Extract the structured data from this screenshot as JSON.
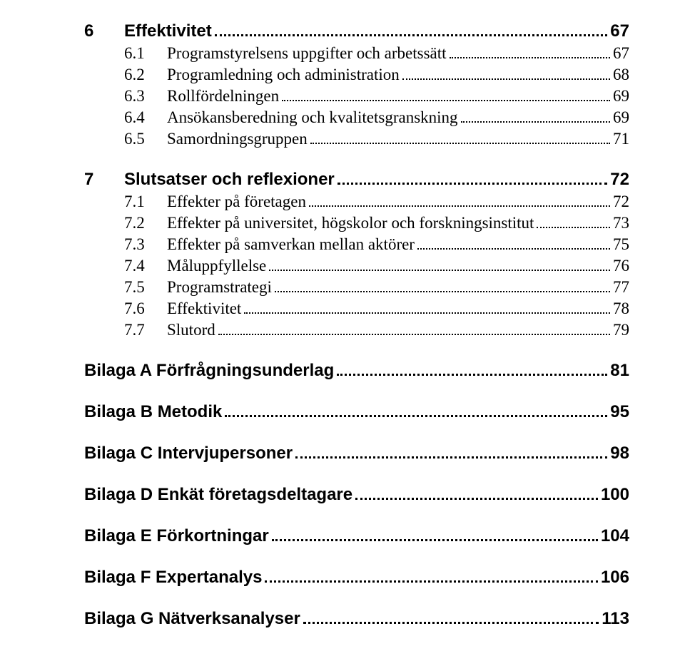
{
  "toc": {
    "sections": [
      {
        "level": 1,
        "number": "6",
        "label": "Effektivitet",
        "page": "67",
        "first": true,
        "items": [
          {
            "number": "6.1",
            "label": "Programstyrelsens uppgifter och arbetssätt",
            "page": "67"
          },
          {
            "number": "6.2",
            "label": "Programledning och administration",
            "page": "68"
          },
          {
            "number": "6.3",
            "label": "Rollfördelningen",
            "page": "69"
          },
          {
            "number": "6.4",
            "label": "Ansökansberedning och kvalitetsgranskning",
            "page": "69"
          },
          {
            "number": "6.5",
            "label": "Samordningsgruppen",
            "page": "71"
          }
        ]
      },
      {
        "level": 1,
        "number": "7",
        "label": "Slutsatser och reflexioner",
        "page": "72",
        "items": [
          {
            "number": "7.1",
            "label": "Effekter på företagen",
            "page": "72"
          },
          {
            "number": "7.2",
            "label": "Effekter på universitet, högskolor och forskningsinstitut",
            "page": "73"
          },
          {
            "number": "7.3",
            "label": "Effekter på samverkan mellan aktörer",
            "page": "75"
          },
          {
            "number": "7.4",
            "label": "Måluppfyllelse",
            "page": "76"
          },
          {
            "number": "7.5",
            "label": "Programstrategi",
            "page": "77"
          },
          {
            "number": "7.6",
            "label": "Effektivitet",
            "page": "78"
          },
          {
            "number": "7.7",
            "label": "Slutord",
            "page": "79"
          }
        ]
      },
      {
        "level": 1,
        "number": "",
        "label": "Bilaga A Förfrågningsunderlag",
        "page": "81",
        "items": []
      },
      {
        "level": 1,
        "number": "",
        "label": "Bilaga B Metodik",
        "page": "95",
        "items": []
      },
      {
        "level": 1,
        "number": "",
        "label": "Bilaga C Intervjupersoner",
        "page": "98",
        "items": []
      },
      {
        "level": 1,
        "number": "",
        "label": "Bilaga D Enkät företagsdeltagare",
        "page": "100",
        "items": []
      },
      {
        "level": 1,
        "number": "",
        "label": "Bilaga E Förkortningar",
        "page": "104",
        "items": []
      },
      {
        "level": 1,
        "number": "",
        "label": "Bilaga F Expertanalys",
        "page": "106",
        "items": []
      },
      {
        "level": 1,
        "number": "",
        "label": "Bilaga G Nätverksanalyser",
        "page": "113",
        "items": []
      }
    ]
  }
}
